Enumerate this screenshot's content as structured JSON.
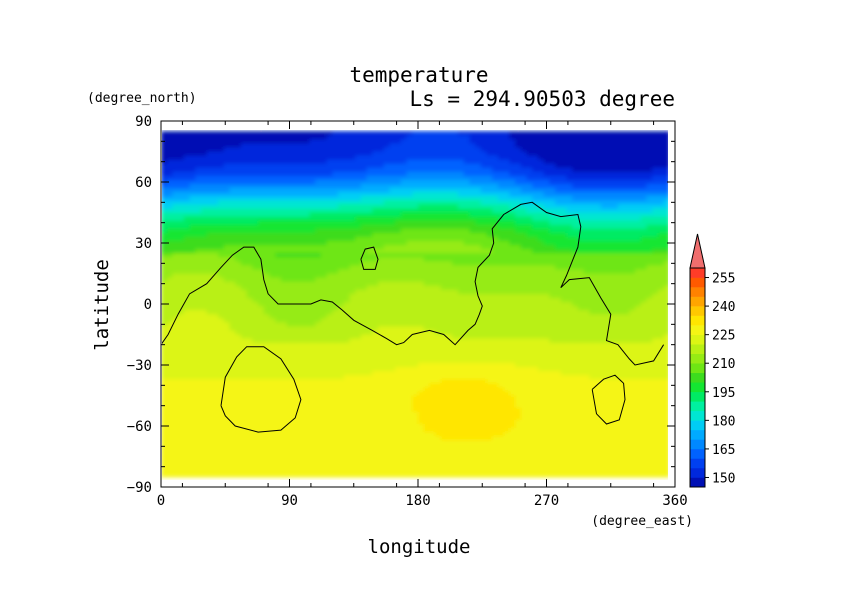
{
  "chart_data": {
    "type": "heatmap",
    "title": "temperature",
    "subtitle": "Ls = 294.90503 degree",
    "xlabel": "longitude",
    "ylabel": "latitude",
    "x_units": "(degree_east)",
    "y_units": "(degree_north)",
    "xlim": [
      0,
      360
    ],
    "ylim": [
      -90,
      90
    ],
    "x_ticks": [
      0,
      90,
      180,
      270,
      360
    ],
    "y_ticks": [
      90,
      60,
      30,
      0,
      -30,
      -60,
      -90
    ],
    "colorbar": {
      "levels": [
        145,
        150,
        155,
        160,
        165,
        170,
        175,
        180,
        185,
        190,
        195,
        200,
        205,
        210,
        215,
        220,
        225,
        230,
        235,
        240,
        245,
        250,
        255,
        260
      ],
      "labels": [
        150,
        165,
        180,
        195,
        210,
        225,
        240,
        255
      ],
      "colors": [
        "#0010b4",
        "#0028dc",
        "#0040f0",
        "#0062ff",
        "#0088ff",
        "#00aaff",
        "#00cdf5",
        "#00e6d2",
        "#00f0a0",
        "#00eb64",
        "#14e632",
        "#3cdc1e",
        "#6ee614",
        "#96eb14",
        "#b9f014",
        "#dcf514",
        "#f5f514",
        "#ffe600",
        "#ffc800",
        "#ffa500",
        "#ff8200",
        "#ff5a00",
        "#ff3c28"
      ],
      "extend_max_color": "#f06e6e"
    },
    "zonal_profile": [
      {
        "lat": 85,
        "temp": 148
      },
      {
        "lat": 75,
        "temp": 150
      },
      {
        "lat": 65,
        "temp": 157
      },
      {
        "lat": 57,
        "temp": 168
      },
      {
        "lat": 50,
        "temp": 180
      },
      {
        "lat": 42,
        "temp": 192
      },
      {
        "lat": 35,
        "temp": 200
      },
      {
        "lat": 25,
        "temp": 207
      },
      {
        "lat": 15,
        "temp": 212
      },
      {
        "lat": 5,
        "temp": 215
      },
      {
        "lat": -5,
        "temp": 217
      },
      {
        "lat": -15,
        "temp": 219
      },
      {
        "lat": -22,
        "temp": 222
      },
      {
        "lat": -30,
        "temp": 224
      },
      {
        "lat": -45,
        "temp": 226
      },
      {
        "lat": -60,
        "temp": 226
      },
      {
        "lat": -75,
        "temp": 226
      },
      {
        "lat": -85,
        "temp": 226
      }
    ],
    "contour_lines": [
      [
        [
          0,
          -20
        ],
        [
          5,
          -15
        ],
        [
          12,
          -5
        ],
        [
          20,
          5
        ],
        [
          32,
          10
        ],
        [
          42,
          18
        ],
        [
          50,
          24
        ],
        [
          58,
          28
        ],
        [
          65,
          28
        ],
        [
          70,
          22
        ],
        [
          72,
          12
        ],
        [
          75,
          5
        ],
        [
          82,
          0
        ],
        [
          95,
          0
        ],
        [
          105,
          0
        ],
        [
          112,
          2
        ],
        [
          120,
          1
        ],
        [
          127,
          -3
        ],
        [
          135,
          -8
        ],
        [
          148,
          -13
        ],
        [
          158,
          -17
        ],
        [
          165,
          -20
        ],
        [
          170,
          -19
        ],
        [
          176,
          -15
        ],
        [
          188,
          -13
        ],
        [
          198,
          -15
        ],
        [
          206,
          -20
        ],
        [
          215,
          -13
        ],
        [
          220,
          -10
        ],
        [
          223,
          -5
        ],
        [
          225,
          -1
        ],
        [
          222,
          4
        ],
        [
          220,
          11
        ],
        [
          222,
          18
        ],
        [
          230,
          24
        ],
        [
          233,
          30
        ],
        [
          232,
          37
        ],
        [
          240,
          44
        ],
        [
          252,
          49
        ],
        [
          260,
          50
        ],
        [
          270,
          45
        ],
        [
          280,
          43
        ],
        [
          292,
          44
        ],
        [
          294,
          38
        ],
        [
          292,
          28
        ],
        [
          284,
          14
        ],
        [
          280,
          8
        ],
        [
          286,
          12
        ],
        [
          300,
          13
        ],
        [
          308,
          3
        ],
        [
          315,
          -5
        ],
        [
          312,
          -18
        ],
        [
          320,
          -20
        ],
        [
          328,
          -27
        ],
        [
          332,
          -30
        ],
        [
          345,
          -28
        ],
        [
          352,
          -20
        ]
      ],
      [
        [
          140,
          22
        ],
        [
          143,
          27
        ],
        [
          149,
          28
        ],
        [
          152,
          22
        ],
        [
          150,
          17
        ],
        [
          142,
          17
        ],
        [
          140,
          22
        ]
      ],
      [
        [
          42,
          -50
        ],
        [
          45,
          -36
        ],
        [
          53,
          -26
        ],
        [
          60,
          -21
        ],
        [
          72,
          -21
        ],
        [
          84,
          -27
        ],
        [
          93,
          -37
        ],
        [
          98,
          -47
        ],
        [
          94,
          -56
        ],
        [
          84,
          -62
        ],
        [
          68,
          -63
        ],
        [
          52,
          -60
        ],
        [
          45,
          -55
        ],
        [
          42,
          -50
        ]
      ],
      [
        [
          302,
          -42
        ],
        [
          310,
          -37
        ],
        [
          318,
          -35
        ],
        [
          324,
          -39
        ],
        [
          325,
          -47
        ],
        [
          321,
          -57
        ],
        [
          312,
          -59
        ],
        [
          305,
          -54
        ],
        [
          302,
          -42
        ]
      ]
    ]
  }
}
